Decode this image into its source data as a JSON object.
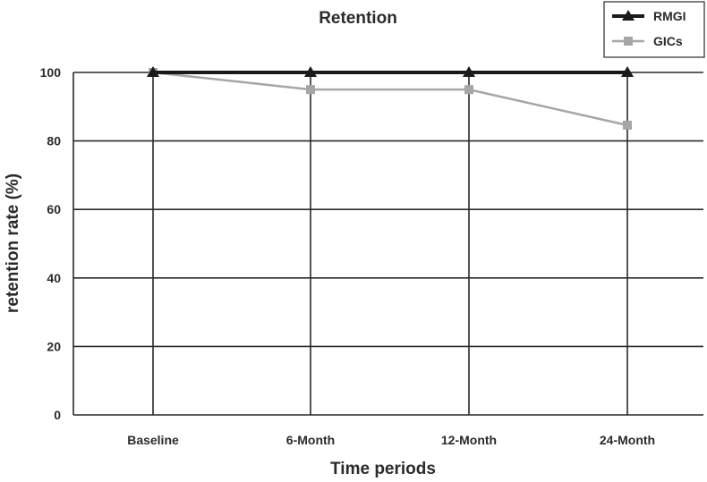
{
  "chart_data": {
    "type": "line",
    "title": "Retention",
    "xlabel": "Time periods",
    "ylabel": "retention rate (%)",
    "categories": [
      "Baseline",
      "6-Month",
      "12-Month",
      "24-Month"
    ],
    "ylim": [
      0,
      100
    ],
    "yticks": [
      0,
      20,
      40,
      60,
      80,
      100
    ],
    "grid": true,
    "legend_position": "top-right",
    "series": [
      {
        "name": "RMGI",
        "values": [
          100,
          100,
          100,
          100
        ],
        "color": "#1a1a1a",
        "marker": "triangle"
      },
      {
        "name": "GICs",
        "values": [
          100,
          95,
          95,
          84.6
        ],
        "color": "#a6a6a6",
        "marker": "square"
      }
    ]
  }
}
